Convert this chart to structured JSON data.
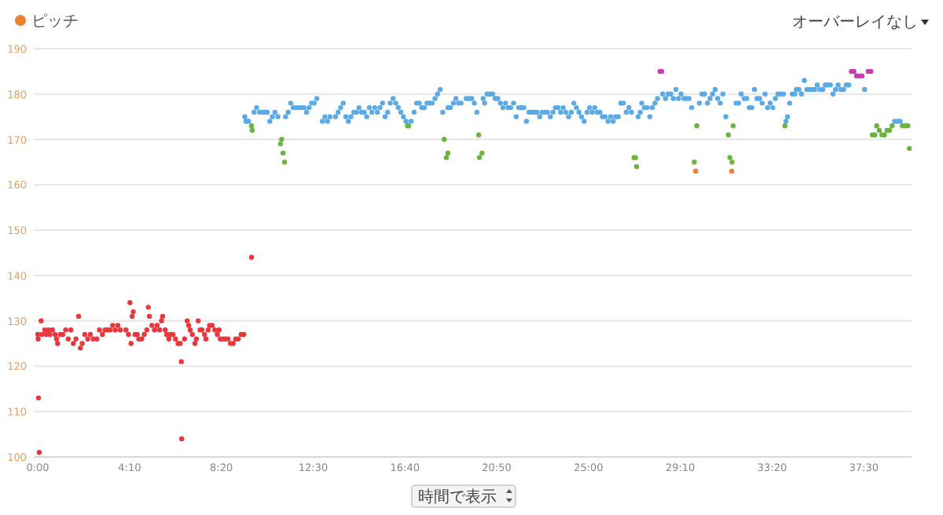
{
  "chart_data": {
    "type": "scatter",
    "xlim": [
      -10,
      2380
    ],
    "ylim": [
      100,
      190
    ],
    "xticks": [
      {
        "value": 0,
        "label": "0:00"
      },
      {
        "value": 250,
        "label": "4:10"
      },
      {
        "value": 500,
        "label": "8:20"
      },
      {
        "value": 750,
        "label": "12:30"
      },
      {
        "value": 1000,
        "label": "16:40"
      },
      {
        "value": 1250,
        "label": "20:50"
      },
      {
        "value": 1500,
        "label": "25:00"
      },
      {
        "value": 1750,
        "label": "29:10"
      },
      {
        "value": 2000,
        "label": "33:20"
      },
      {
        "value": 2250,
        "label": "37:30"
      }
    ],
    "yticks": [
      100,
      110,
      120,
      130,
      140,
      150,
      160,
      170,
      180,
      190
    ],
    "grid": "y",
    "legend": "top left",
    "marker": "circle",
    "annotations": [
      "オーバーレイなし",
      "時間で表示"
    ],
    "series": [
      {
        "name": "ピッチ",
        "color": "#e8822f",
        "x": [
          0,
          1,
          2,
          4,
          9,
          11,
          19,
          23,
          29,
          33,
          40,
          47,
          51,
          54,
          61,
          68,
          76,
          83,
          90,
          97,
          104,
          111,
          116,
          121,
          128,
          136,
          143,
          151,
          161,
          168,
          176,
          183,
          190,
          197,
          204,
          211,
          218,
          225,
          240,
          247,
          251,
          254,
          257,
          260,
          265,
          271,
          275,
          283,
          290,
          297,
          301,
          304,
          311,
          318,
          325,
          332,
          337,
          340,
          347,
          351,
          357,
          361,
          368,
          375,
          382,
          388,
          391,
          392,
          400,
          407,
          411,
          415,
          421,
          428,
          432,
          437,
          442,
          447,
          454,
          458,
          464,
          468,
          475,
          482,
          489,
          494,
          497,
          504,
          511,
          518,
          525,
          532,
          539,
          546,
          554,
          561,
          582,
          564,
          567,
          574,
          582,
          584,
          589,
          596,
          604,
          611,
          618,
          625,
          632,
          639,
          646,
          654,
          661,
          664,
          668,
          672,
          675,
          682,
          689,
          696,
          704,
          711,
          718,
          725,
          732,
          739,
          746,
          753,
          760,
          775,
          782,
          789,
          796,
          811,
          818,
          825,
          832,
          839,
          846,
          853,
          861,
          868,
          875,
          882,
          889,
          896,
          903,
          910,
          918,
          925,
          932,
          939,
          946,
          953,
          960,
          968,
          975,
          982,
          989,
          996,
          1003,
          1007,
          1010,
          1017,
          1025,
          1032,
          1039,
          1046,
          1053,
          1060,
          1067,
          1074,
          1082,
          1089,
          1096,
          1103,
          1107,
          1113,
          1117,
          1117,
          1124,
          1132,
          1139,
          1146,
          1153,
          1167,
          1174,
          1182,
          1189,
          1196,
          1201,
          1203,
          1210,
          1213,
          1217,
          1224,
          1231,
          1239,
          1246,
          1253,
          1260,
          1267,
          1274,
          1281,
          1288,
          1296,
          1303,
          1310,
          1317,
          1324,
          1331,
          1338,
          1346,
          1353,
          1360,
          1367,
          1374,
          1381,
          1388,
          1396,
          1403,
          1410,
          1417,
          1424,
          1431,
          1438,
          1446,
          1453,
          1460,
          1467,
          1474,
          1481,
          1488,
          1496,
          1503,
          1510,
          1517,
          1524,
          1531,
          1538,
          1545,
          1553,
          1560,
          1567,
          1574,
          1581,
          1588,
          1595,
          1603,
          1610,
          1617,
          1624,
          1628,
          1631,
          1635,
          1641,
          1645,
          1652,
          1660,
          1667,
          1674,
          1681,
          1688,
          1695,
          1699,
          1702,
          1710,
          1717,
          1724,
          1731,
          1738,
          1745,
          1752,
          1760,
          1767,
          1774,
          1781,
          1788,
          1792,
          1795,
          1802,
          1809,
          1816,
          1824,
          1831,
          1838,
          1845,
          1852,
          1859,
          1866,
          1874,
          1881,
          1885,
          1890,
          1891,
          1894,
          1902,
          1909,
          1916,
          1924,
          1931,
          1938,
          1945,
          1952,
          1959,
          1966,
          1973,
          1981,
          1988,
          1995,
          2002,
          2009,
          2016,
          2023,
          2031,
          2035,
          2038,
          2042,
          2048,
          2055,
          2062,
          2066,
          2073,
          2080,
          2088,
          2095,
          2102,
          2109,
          2116,
          2123,
          2130,
          2138,
          2145,
          2152,
          2159,
          2166,
          2173,
          2180,
          2187,
          2195,
          2202,
          2209,
          2216,
          2223,
          2230,
          2237,
          2245,
          2252,
          2262,
          2269,
          2273,
          2280,
          2285,
          2292,
          2299,
          2306,
          2313,
          2320,
          2327,
          2334,
          2342,
          2349,
          2355,
          2363,
          2370,
          2374
        ],
        "values": [
          127,
          126,
          113,
          101,
          130,
          127,
          128,
          127,
          128,
          127,
          128,
          127,
          126,
          125,
          127,
          127,
          128,
          126,
          128,
          125,
          126,
          131,
          124,
          125,
          127,
          126,
          127,
          126,
          126,
          128,
          127,
          128,
          128,
          128,
          129,
          128,
          129,
          128,
          128,
          127,
          134,
          125,
          131,
          132,
          127,
          127,
          126,
          126,
          127,
          128,
          133,
          131,
          129,
          128,
          129,
          128,
          130,
          131,
          128,
          127,
          126,
          127,
          127,
          126,
          125,
          125,
          121,
          104,
          126,
          130,
          129,
          128,
          127,
          125,
          126,
          130,
          128,
          128,
          127,
          126,
          128,
          129,
          129,
          128,
          127,
          128,
          126,
          126,
          126,
          126,
          125,
          125,
          126,
          126,
          127,
          127,
          144,
          175,
          174,
          174,
          173,
          172,
          176,
          177,
          176,
          176,
          176,
          176,
          174,
          175,
          176,
          175,
          169,
          170,
          167,
          165,
          175,
          176,
          178,
          177,
          177,
          177,
          177,
          177,
          176,
          177,
          178,
          178,
          179,
          174,
          175,
          174,
          175,
          175,
          176,
          177,
          178,
          175,
          174,
          175,
          176,
          176,
          177,
          176,
          176,
          175,
          177,
          176,
          177,
          176,
          177,
          178,
          175,
          176,
          178,
          179,
          178,
          177,
          176,
          175,
          174,
          173,
          173,
          174,
          176,
          178,
          178,
          177,
          177,
          178,
          178,
          178,
          179,
          180,
          181,
          176,
          170,
          166,
          167,
          177,
          177,
          178,
          179,
          178,
          178,
          179,
          179,
          179,
          178,
          176,
          171,
          166,
          167,
          179,
          178,
          180,
          180,
          180,
          179,
          179,
          178,
          177,
          178,
          177,
          177,
          178,
          175,
          177,
          177,
          177,
          174,
          176,
          176,
          176,
          176,
          175,
          176,
          176,
          176,
          175,
          176,
          177,
          177,
          176,
          177,
          176,
          175,
          176,
          178,
          177,
          176,
          175,
          174,
          176,
          177,
          176,
          177,
          176,
          176,
          175,
          175,
          174,
          175,
          174,
          175,
          175,
          178,
          178,
          176,
          177,
          176,
          166,
          166,
          164,
          175,
          176,
          178,
          177,
          177,
          175,
          177,
          178,
          179,
          185,
          185,
          180,
          179,
          180,
          180,
          179,
          181,
          179,
          180,
          179,
          179,
          179,
          177,
          165,
          163,
          173,
          178,
          180,
          180,
          178,
          179,
          180,
          181,
          179,
          178,
          180,
          175,
          171,
          166,
          163,
          165,
          173,
          178,
          178,
          180,
          179,
          179,
          177,
          177,
          181,
          179,
          179,
          178,
          180,
          177,
          178,
          177,
          179,
          180,
          180,
          180,
          173,
          174,
          175,
          178,
          180,
          180,
          181,
          181,
          180,
          183,
          181,
          181,
          181,
          181,
          182,
          181,
          181,
          182,
          182,
          182,
          180,
          181,
          182,
          181,
          181,
          182,
          182,
          185,
          185,
          184,
          184,
          184,
          181,
          185,
          185,
          171,
          171,
          173,
          172,
          171,
          171,
          172,
          172,
          173,
          174,
          174,
          174,
          173,
          173,
          173,
          168
        ],
        "colors": [
          "#e8383d",
          "#e8383d",
          "#e8383d",
          "#e8383d",
          "#e8383d",
          "#e8383d",
          "#e8383d",
          "#e8383d",
          "#e8383d",
          "#e8383d",
          "#e8383d",
          "#e8383d",
          "#e8383d",
          "#e8383d",
          "#e8383d",
          "#e8383d",
          "#e8383d",
          "#e8383d",
          "#e8383d",
          "#e8383d",
          "#e8383d",
          "#e8383d",
          "#e8383d",
          "#e8383d",
          "#e8383d",
          "#e8383d",
          "#e8383d",
          "#e8383d",
          "#e8383d",
          "#e8383d",
          "#e8383d",
          "#e8383d",
          "#e8383d",
          "#e8383d",
          "#e8383d",
          "#e8383d",
          "#e8383d",
          "#e8383d",
          "#e8383d",
          "#e8383d",
          "#e8383d",
          "#e8383d",
          "#e8383d",
          "#e8383d",
          "#e8383d",
          "#e8383d",
          "#e8383d",
          "#e8383d",
          "#e8383d",
          "#e8383d",
          "#e8383d",
          "#e8383d",
          "#e8383d",
          "#e8383d",
          "#e8383d",
          "#e8383d",
          "#e8383d",
          "#e8383d",
          "#e8383d",
          "#e8383d",
          "#e8383d",
          "#e8383d",
          "#e8383d",
          "#e8383d",
          "#e8383d",
          "#e8383d",
          "#e8383d",
          "#e8383d",
          "#e8383d",
          "#e8383d",
          "#e8383d",
          "#e8383d",
          "#e8383d",
          "#e8383d",
          "#e8383d",
          "#e8383d",
          "#e8383d",
          "#e8383d",
          "#e8383d",
          "#e8383d",
          "#e8383d",
          "#e8383d",
          "#e8383d",
          "#e8383d",
          "#e8383d",
          "#e8383d",
          "#e8383d",
          "#e8383d",
          "#e8383d",
          "#e8383d",
          "#e8383d",
          "#e8383d",
          "#e8383d",
          "#e8383d",
          "#e8383d",
          "#e8383d",
          "#e8383d",
          "#5aaae6",
          "#5aaae6",
          "#5aaae6",
          "#6ab43f",
          "#6ab43f",
          "#5aaae6",
          "#5aaae6",
          "#5aaae6",
          "#5aaae6",
          "#5aaae6",
          "#5aaae6",
          "#5aaae6",
          "#5aaae6",
          "#5aaae6",
          "#5aaae6",
          "#6ab43f",
          "#6ab43f",
          "#6ab43f",
          "#6ab43f",
          "#5aaae6",
          "#5aaae6",
          "#5aaae6",
          "#5aaae6",
          "#5aaae6",
          "#5aaae6",
          "#5aaae6",
          "#5aaae6",
          "#5aaae6",
          "#5aaae6",
          "#5aaae6",
          "#5aaae6",
          "#5aaae6",
          "#5aaae6",
          "#5aaae6",
          "#5aaae6",
          "#5aaae6",
          "#5aaae6",
          "#5aaae6",
          "#5aaae6",
          "#5aaae6",
          "#5aaae6",
          "#5aaae6",
          "#5aaae6",
          "#5aaae6",
          "#5aaae6",
          "#5aaae6",
          "#5aaae6",
          "#5aaae6",
          "#5aaae6",
          "#5aaae6",
          "#5aaae6",
          "#5aaae6",
          "#5aaae6",
          "#5aaae6",
          "#5aaae6",
          "#5aaae6",
          "#5aaae6",
          "#5aaae6",
          "#5aaae6",
          "#5aaae6",
          "#5aaae6",
          "#5aaae6",
          "#5aaae6",
          "#5aaae6",
          "#6ab43f",
          "#6ab43f",
          "#5aaae6",
          "#5aaae6",
          "#5aaae6",
          "#5aaae6",
          "#5aaae6",
          "#5aaae6",
          "#5aaae6",
          "#5aaae6",
          "#5aaae6",
          "#5aaae6",
          "#5aaae6",
          "#5aaae6",
          "#5aaae6",
          "#6ab43f",
          "#6ab43f",
          "#6ab43f",
          "#5aaae6",
          "#5aaae6",
          "#5aaae6",
          "#5aaae6",
          "#5aaae6",
          "#5aaae6",
          "#5aaae6",
          "#5aaae6",
          "#5aaae6",
          "#5aaae6",
          "#5aaae6",
          "#6ab43f",
          "#6ab43f",
          "#6ab43f",
          "#5aaae6",
          "#5aaae6",
          "#5aaae6",
          "#5aaae6",
          "#5aaae6",
          "#5aaae6",
          "#5aaae6",
          "#5aaae6",
          "#5aaae6",
          "#5aaae6",
          "#5aaae6",
          "#5aaae6",
          "#5aaae6",
          "#5aaae6",
          "#5aaae6",
          "#5aaae6",
          "#5aaae6",
          "#5aaae6",
          "#5aaae6",
          "#5aaae6",
          "#5aaae6",
          "#5aaae6",
          "#5aaae6",
          "#5aaae6",
          "#5aaae6",
          "#5aaae6",
          "#5aaae6",
          "#5aaae6",
          "#5aaae6",
          "#5aaae6",
          "#5aaae6",
          "#5aaae6",
          "#5aaae6",
          "#5aaae6",
          "#5aaae6",
          "#5aaae6",
          "#5aaae6",
          "#5aaae6",
          "#5aaae6",
          "#5aaae6",
          "#5aaae6",
          "#5aaae6",
          "#5aaae6",
          "#5aaae6",
          "#5aaae6",
          "#5aaae6",
          "#5aaae6",
          "#5aaae6",
          "#5aaae6",
          "#5aaae6",
          "#5aaae6",
          "#5aaae6",
          "#5aaae6",
          "#5aaae6",
          "#5aaae6",
          "#5aaae6",
          "#5aaae6",
          "#5aaae6",
          "#6ab43f",
          "#6ab43f",
          "#6ab43f",
          "#5aaae6",
          "#5aaae6",
          "#5aaae6",
          "#5aaae6",
          "#5aaae6",
          "#5aaae6",
          "#5aaae6",
          "#5aaae6",
          "#5aaae6",
          "#c83cb4",
          "#c83cb4",
          "#5aaae6",
          "#5aaae6",
          "#5aaae6",
          "#5aaae6",
          "#5aaae6",
          "#5aaae6",
          "#5aaae6",
          "#5aaae6",
          "#5aaae6",
          "#5aaae6",
          "#5aaae6",
          "#5aaae6",
          "#6ab43f",
          "#e8822f",
          "#6ab43f",
          "#5aaae6",
          "#5aaae6",
          "#5aaae6",
          "#5aaae6",
          "#5aaae6",
          "#5aaae6",
          "#5aaae6",
          "#5aaae6",
          "#5aaae6",
          "#5aaae6",
          "#5aaae6",
          "#6ab43f",
          "#6ab43f",
          "#e8822f",
          "#6ab43f",
          "#6ab43f",
          "#5aaae6",
          "#5aaae6",
          "#5aaae6",
          "#5aaae6",
          "#5aaae6",
          "#5aaae6",
          "#5aaae6",
          "#5aaae6",
          "#5aaae6",
          "#5aaae6",
          "#5aaae6",
          "#5aaae6",
          "#5aaae6",
          "#5aaae6",
          "#5aaae6",
          "#5aaae6",
          "#5aaae6",
          "#5aaae6",
          "#5aaae6",
          "#6ab43f",
          "#5aaae6",
          "#5aaae6",
          "#5aaae6",
          "#5aaae6",
          "#5aaae6",
          "#5aaae6",
          "#5aaae6",
          "#5aaae6",
          "#5aaae6",
          "#5aaae6",
          "#5aaae6",
          "#5aaae6",
          "#5aaae6",
          "#5aaae6",
          "#5aaae6",
          "#5aaae6",
          "#5aaae6",
          "#5aaae6",
          "#5aaae6",
          "#5aaae6",
          "#5aaae6",
          "#5aaae6",
          "#5aaae6",
          "#5aaae6",
          "#5aaae6",
          "#5aaae6",
          "#c83cb4",
          "#c83cb4",
          "#c83cb4",
          "#c83cb4",
          "#c83cb4",
          "#5aaae6",
          "#c83cb4",
          "#c83cb4",
          "#6ab43f",
          "#6ab43f",
          "#6ab43f",
          "#6ab43f",
          "#6ab43f",
          "#6ab43f",
          "#6ab43f",
          "#6ab43f",
          "#6ab43f",
          "#5aaae6",
          "#5aaae6",
          "#5aaae6",
          "#6ab43f",
          "#6ab43f",
          "#6ab43f",
          "#6ab43f"
        ]
      }
    ]
  }
}
